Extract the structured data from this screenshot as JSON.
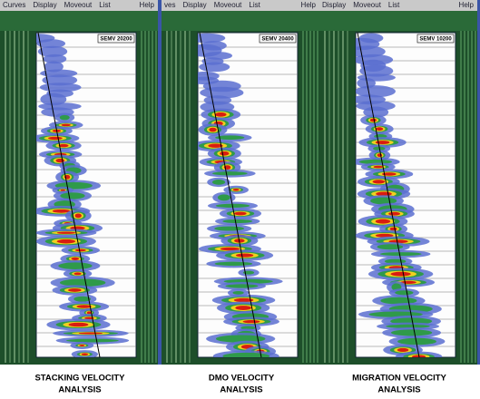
{
  "panels": [
    {
      "menu": [
        "Curves",
        "Display",
        "Moveout",
        "List"
      ],
      "help": "Help",
      "label": "SEMV 20200",
      "caption": [
        "STACKING VELOCITY",
        "ANALYSIS"
      ]
    },
    {
      "menu": [
        "ves",
        "Display",
        "Moveout",
        "List"
      ],
      "help": "Help",
      "label": "SEMV 20400",
      "caption": [
        "DMO VELOCITY",
        "ANALYSIS"
      ]
    },
    {
      "menu": [
        "Display",
        "Moveout",
        "List"
      ],
      "help": "Help",
      "label": "SEMV 10200",
      "caption": [
        "MIGRATION VELOCITY",
        "ANALYSIS"
      ]
    }
  ]
}
